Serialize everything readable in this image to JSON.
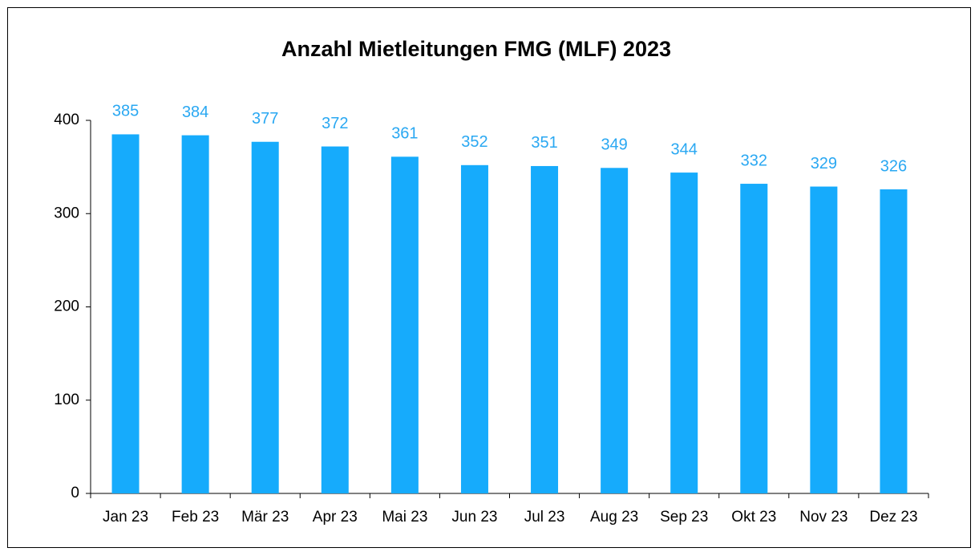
{
  "chart_data": {
    "type": "bar",
    "title": "Anzahl Mietleitungen  FMG (MLF) 2023",
    "categories": [
      "Jan 23",
      "Feb 23",
      "Mär 23",
      "Apr 23",
      "Mai 23",
      "Jun 23",
      "Jul 23",
      "Aug 23",
      "Sep 23",
      "Okt 23",
      "Nov 23",
      "Dez 23"
    ],
    "values": [
      385,
      384,
      377,
      372,
      361,
      352,
      351,
      349,
      344,
      332,
      329,
      326
    ],
    "color": "#16abfc",
    "label_color": "#2aa8f2",
    "ylim": [
      0,
      400
    ],
    "yticks": [
      0,
      100,
      200,
      300,
      400
    ],
    "grid": false
  }
}
